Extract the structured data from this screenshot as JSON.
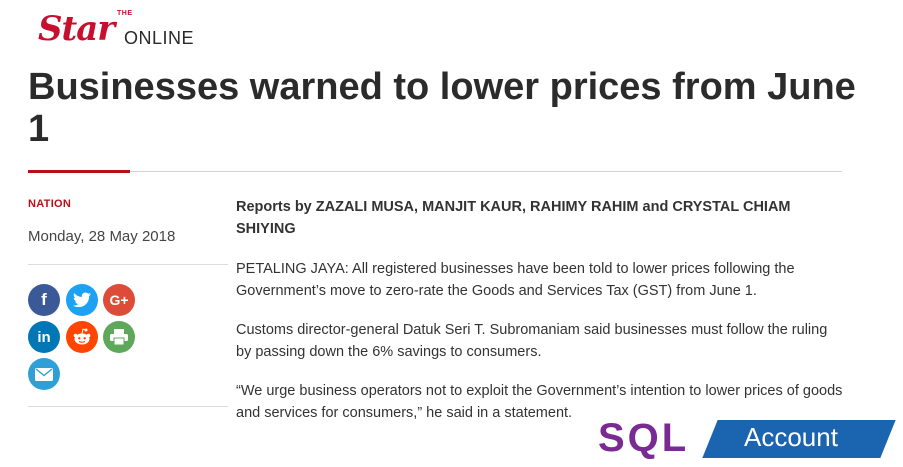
{
  "logo": {
    "the": "THE",
    "star": "Star",
    "online": "ONLINE"
  },
  "article": {
    "headline": "Businesses warned to lower prices from June 1",
    "category": "NATION",
    "date": "Monday, 28 May 2018",
    "byline": "Reports by ZAZALI MUSA, MANJIT KAUR, RAHIMY RAHIM and CRYSTAL CHIAM SHIYING",
    "paragraphs": [
      "PETALING JAYA: All registered businesses have been told to lower prices following the Government’s move to zero-rate the Goods and Services Tax (GST) from June 1.",
      "Customs director-general Datuk Seri T. Subromaniam said businesses must follow the ruling by passing down the 6% savings to consumers.",
      "“We urge business operators not to exploit the Government’s intention to lower prices of goods and services for consumers,” he said in a statement."
    ]
  },
  "share": {
    "facebook": "f",
    "google_plus": "G+",
    "linkedin": "in",
    "icons": [
      "facebook-icon",
      "twitter-icon",
      "google-plus-icon",
      "linkedin-icon",
      "reddit-icon",
      "print-icon",
      "email-icon"
    ],
    "colors": {
      "facebook": "#3b5998",
      "twitter": "#1da1f2",
      "google_plus": "#dd4b39",
      "linkedin": "#0077b5",
      "reddit": "#ff4500",
      "print": "#5fa75b",
      "email": "#2f9fd8"
    }
  },
  "watermark": {
    "sql": "SQL",
    "account": "Account"
  },
  "colors": {
    "brand_red": "#c8102e",
    "watermark_purple": "#7a2a93",
    "watermark_blue": "#1b64b0"
  }
}
